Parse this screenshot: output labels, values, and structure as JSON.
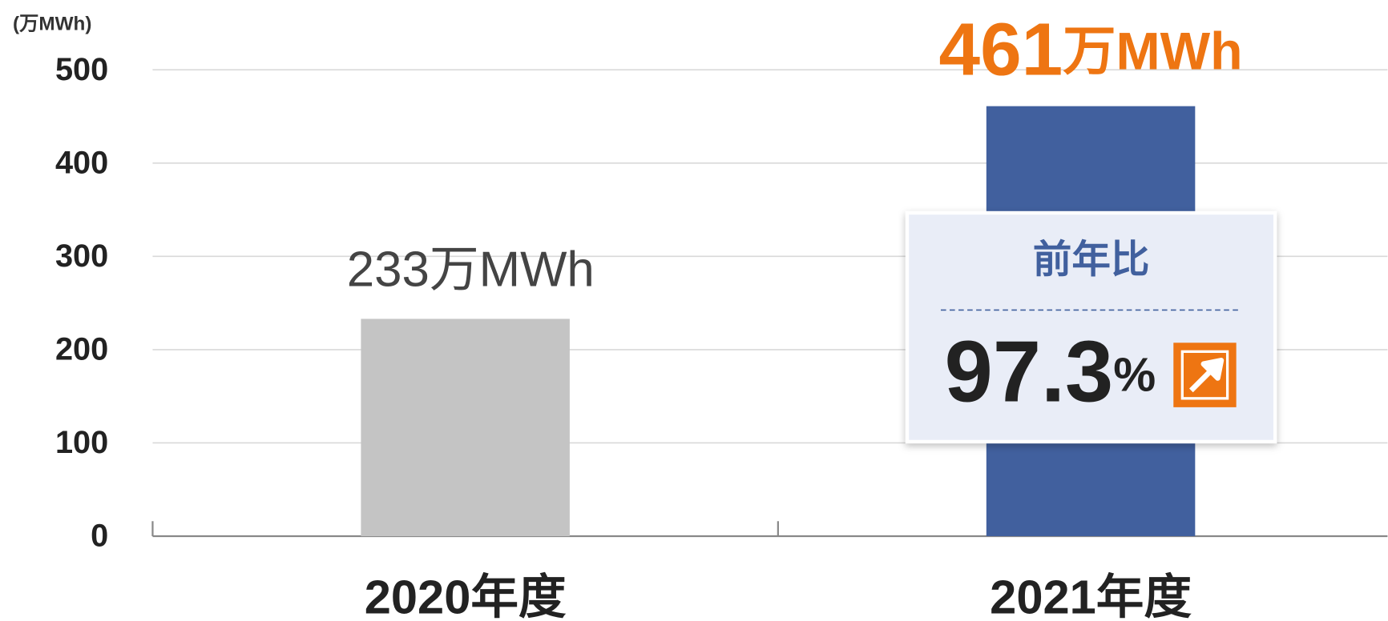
{
  "chart_data": {
    "type": "bar",
    "y_axis_label": "(万MWh)",
    "categories": [
      "2020年度",
      "2021年度"
    ],
    "values": [
      233,
      461
    ],
    "value_labels": [
      "233万MWh",
      "461万MWh"
    ],
    "colors": [
      "#c4c4c4",
      "#41609e"
    ],
    "ylim": [
      0,
      500
    ],
    "yticks": [
      0,
      100,
      200,
      300,
      400,
      500
    ],
    "grid": true,
    "callout": {
      "label": "前年比",
      "value": 97.3,
      "unit": "%"
    }
  }
}
